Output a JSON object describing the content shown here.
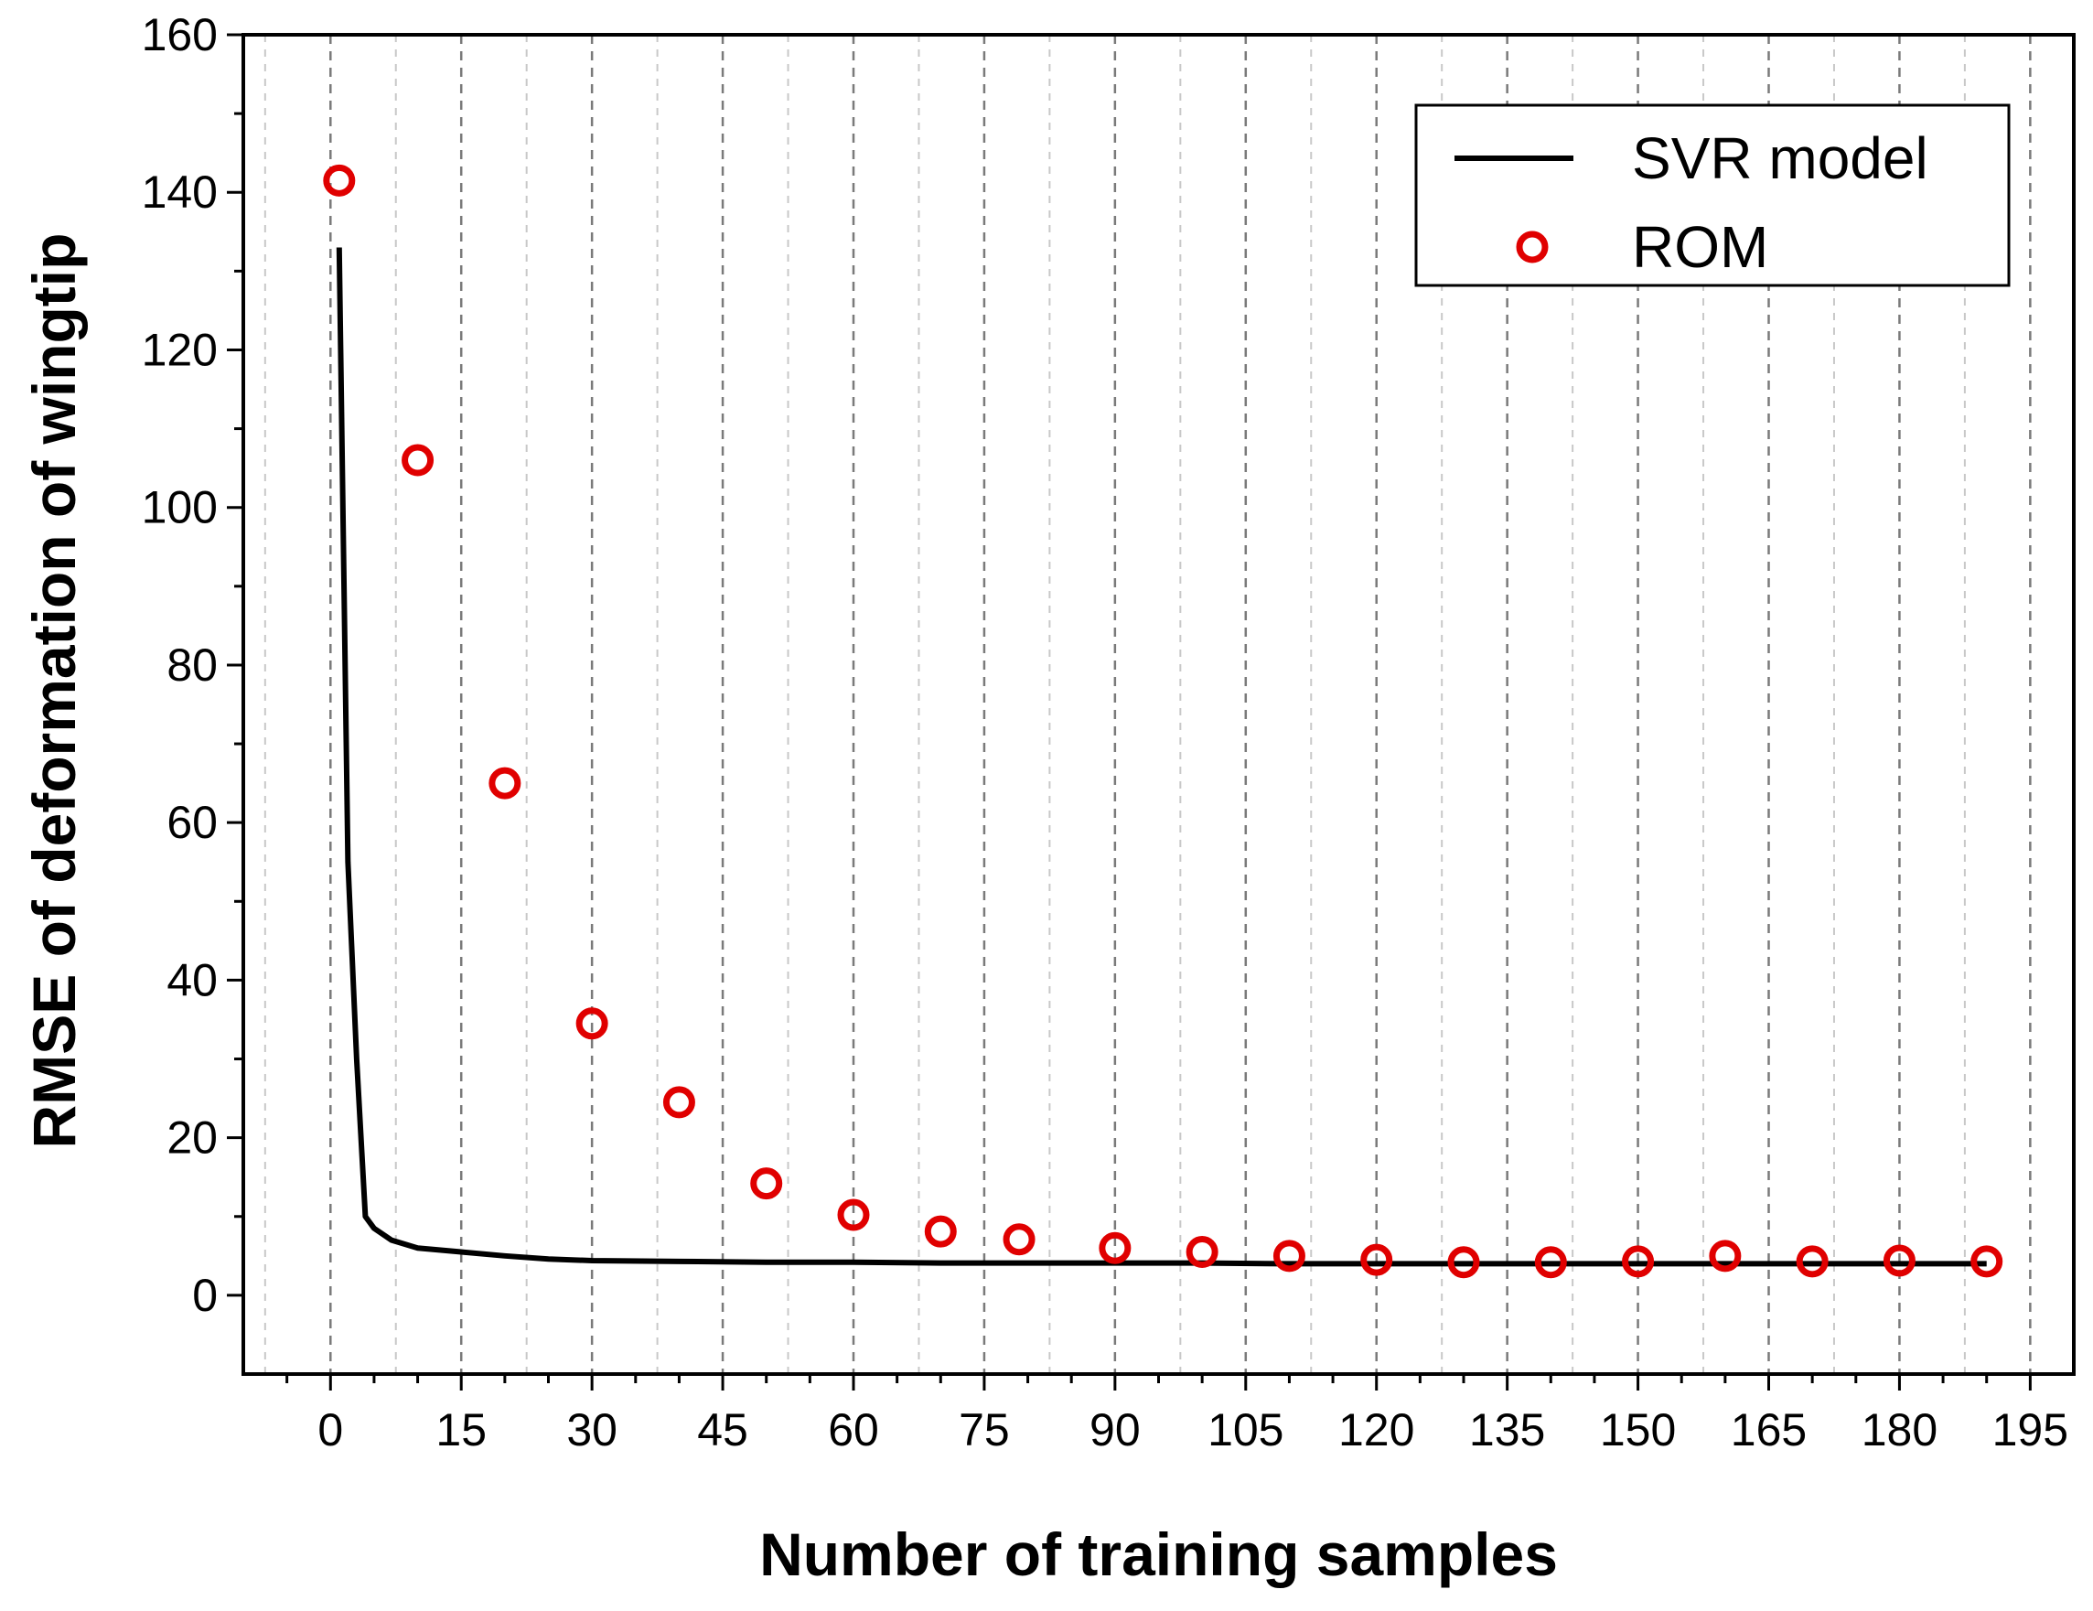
{
  "chart_data": {
    "type": "line",
    "title": "",
    "xlabel": "Number of training samples",
    "ylabel": "RMSE of deformation of wingtip",
    "xlim": [
      -10,
      200
    ],
    "ylim": [
      -10,
      160
    ],
    "xticks": [
      0,
      15,
      30,
      45,
      60,
      75,
      90,
      105,
      120,
      135,
      150,
      165,
      180,
      195
    ],
    "yticks": [
      0,
      20,
      40,
      60,
      80,
      100,
      120,
      140,
      160
    ],
    "grid": "vertical dashed",
    "legend_position": "top-right",
    "series": [
      {
        "name": "SVR model",
        "style": "line",
        "color": "#000000",
        "x": [
          1,
          2,
          3,
          4,
          5,
          7,
          10,
          15,
          20,
          25,
          30,
          40,
          50,
          60,
          70,
          80,
          90,
          100,
          110,
          120,
          130,
          140,
          150,
          160,
          170,
          180,
          190
        ],
        "y": [
          133,
          55,
          30,
          10,
          8.5,
          7,
          6,
          5.5,
          5,
          4.6,
          4.4,
          4.3,
          4.2,
          4.2,
          4.1,
          4.1,
          4.1,
          4.1,
          4.0,
          4.0,
          4.0,
          4.0,
          4.0,
          4.0,
          4.0,
          4.0,
          4.0
        ]
      },
      {
        "name": "ROM",
        "style": "scatter",
        "color": "#e00000",
        "x": [
          1,
          10,
          20,
          30,
          40,
          50,
          60,
          70,
          79,
          90,
          100,
          110,
          120,
          130,
          140,
          150,
          160,
          170,
          180,
          190
        ],
        "y": [
          141.5,
          106,
          65,
          34.5,
          24.5,
          14.2,
          10.2,
          8.1,
          7.1,
          6.0,
          5.5,
          5.0,
          4.5,
          4.2,
          4.2,
          4.3,
          5.0,
          4.3,
          4.4,
          4.3
        ]
      }
    ]
  }
}
